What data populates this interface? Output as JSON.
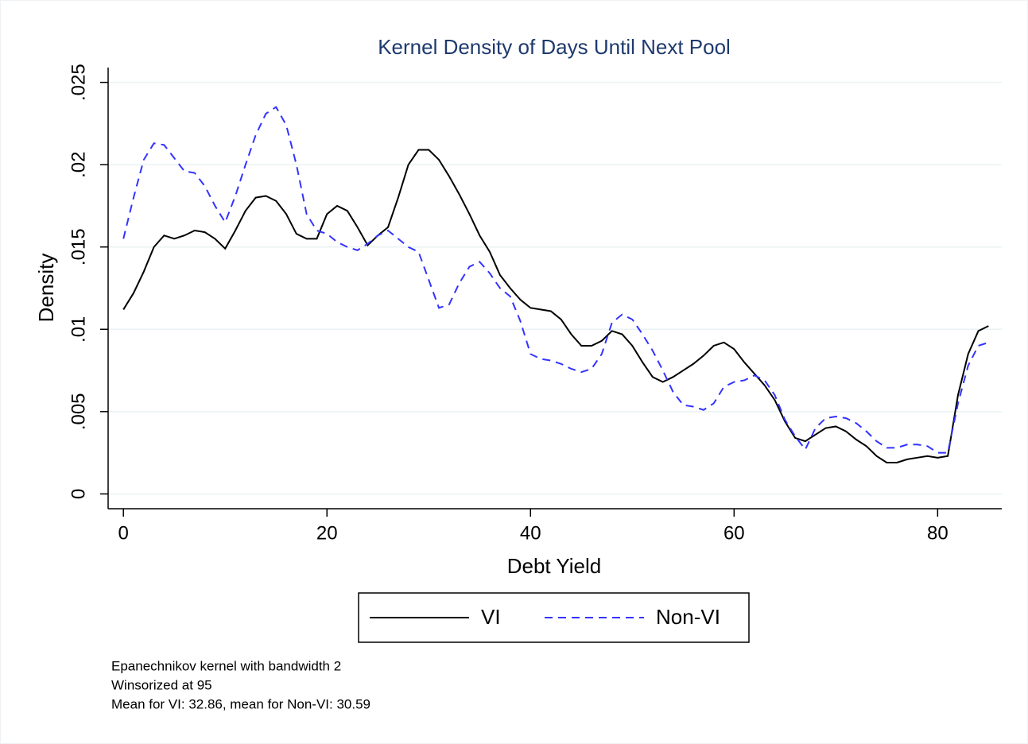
{
  "chart_data": {
    "type": "line",
    "title": "Kernel Density of Days Until Next Pool",
    "x_label": "Debt Yield",
    "y_label": "Density",
    "x": [
      0,
      1,
      2,
      3,
      4,
      5,
      6,
      7,
      8,
      9,
      10,
      11,
      12,
      13,
      14,
      15,
      16,
      17,
      18,
      19,
      20,
      21,
      22,
      23,
      24,
      25,
      26,
      27,
      28,
      29,
      30,
      31,
      32,
      33,
      34,
      35,
      36,
      37,
      38,
      39,
      40,
      41,
      42,
      43,
      44,
      45,
      46,
      47,
      48,
      49,
      50,
      51,
      52,
      53,
      54,
      55,
      56,
      57,
      58,
      59,
      60,
      61,
      62,
      63,
      64,
      65,
      66,
      67,
      68,
      69,
      70,
      71,
      72,
      73,
      74,
      75,
      76,
      77,
      78,
      79,
      80,
      81,
      82,
      83,
      84,
      85
    ],
    "series": [
      {
        "name": "VI",
        "color": "#000000",
        "dash": false,
        "values": [
          0.0112,
          0.0122,
          0.0135,
          0.015,
          0.0157,
          0.0155,
          0.0157,
          0.016,
          0.0159,
          0.0155,
          0.0149,
          0.016,
          0.0172,
          0.018,
          0.0181,
          0.0178,
          0.017,
          0.0158,
          0.0155,
          0.0155,
          0.017,
          0.0175,
          0.0172,
          0.0162,
          0.0151,
          0.0157,
          0.0162,
          0.018,
          0.02,
          0.0209,
          0.0209,
          0.0203,
          0.0193,
          0.0182,
          0.017,
          0.0157,
          0.0147,
          0.0133,
          0.0125,
          0.0118,
          0.0113,
          0.0112,
          0.0111,
          0.0106,
          0.0097,
          0.009,
          0.009,
          0.0093,
          0.0099,
          0.0097,
          0.009,
          0.008,
          0.0071,
          0.0068,
          0.0071,
          0.0075,
          0.0079,
          0.0084,
          0.009,
          0.0092,
          0.0088,
          0.008,
          0.0073,
          0.0066,
          0.0057,
          0.0044,
          0.0034,
          0.0032,
          0.0036,
          0.004,
          0.0041,
          0.0038,
          0.0033,
          0.0029,
          0.0023,
          0.0019,
          0.0019,
          0.0021,
          0.0022,
          0.0023,
          0.0022,
          0.0023,
          0.006,
          0.0085,
          0.0099,
          0.0102
        ]
      },
      {
        "name": "Non-VI",
        "color": "#3333ff",
        "dash": true,
        "values": [
          0.0155,
          0.018,
          0.0203,
          0.0213,
          0.0212,
          0.0204,
          0.0196,
          0.0195,
          0.0187,
          0.0175,
          0.0165,
          0.0181,
          0.02,
          0.0218,
          0.0231,
          0.0235,
          0.0224,
          0.02,
          0.017,
          0.016,
          0.0158,
          0.0153,
          0.015,
          0.0148,
          0.0152,
          0.0157,
          0.016,
          0.0155,
          0.015,
          0.0147,
          0.013,
          0.0113,
          0.0115,
          0.0128,
          0.0138,
          0.0141,
          0.0134,
          0.0125,
          0.012,
          0.0105,
          0.0085,
          0.0082,
          0.0081,
          0.0079,
          0.0076,
          0.0074,
          0.0076,
          0.0085,
          0.0104,
          0.0109,
          0.0106,
          0.0097,
          0.0087,
          0.0075,
          0.0062,
          0.0054,
          0.0053,
          0.0051,
          0.0055,
          0.0065,
          0.0068,
          0.0069,
          0.0072,
          0.0069,
          0.006,
          0.0045,
          0.0035,
          0.0027,
          0.004,
          0.0046,
          0.0047,
          0.0046,
          0.0043,
          0.0038,
          0.0032,
          0.0028,
          0.0028,
          0.003,
          0.003,
          0.0029,
          0.0025,
          0.0025,
          0.0055,
          0.0078,
          0.009,
          0.0092
        ]
      }
    ],
    "xlim": [
      -1.5,
      86.3
    ],
    "ylim": [
      -0.0009,
      0.0259
    ],
    "xticks": [
      0,
      20,
      40,
      60,
      80
    ],
    "yticks": [
      0,
      {
        "value": 0.005,
        "label": ".005"
      },
      {
        "value": 0.01,
        "label": ".01"
      },
      {
        "value": 0.015,
        "label": ".015"
      },
      {
        "value": 0.02,
        "label": ".02"
      },
      {
        "value": 0.025,
        "label": ".025"
      }
    ],
    "grid": true,
    "legend": "bottom",
    "notes": [
      "Epanechnikov kernel with bandwidth 2",
      "Winsorized at 95",
      "Mean for VI: 32.86, mean for Non-VI: 30.59"
    ]
  }
}
